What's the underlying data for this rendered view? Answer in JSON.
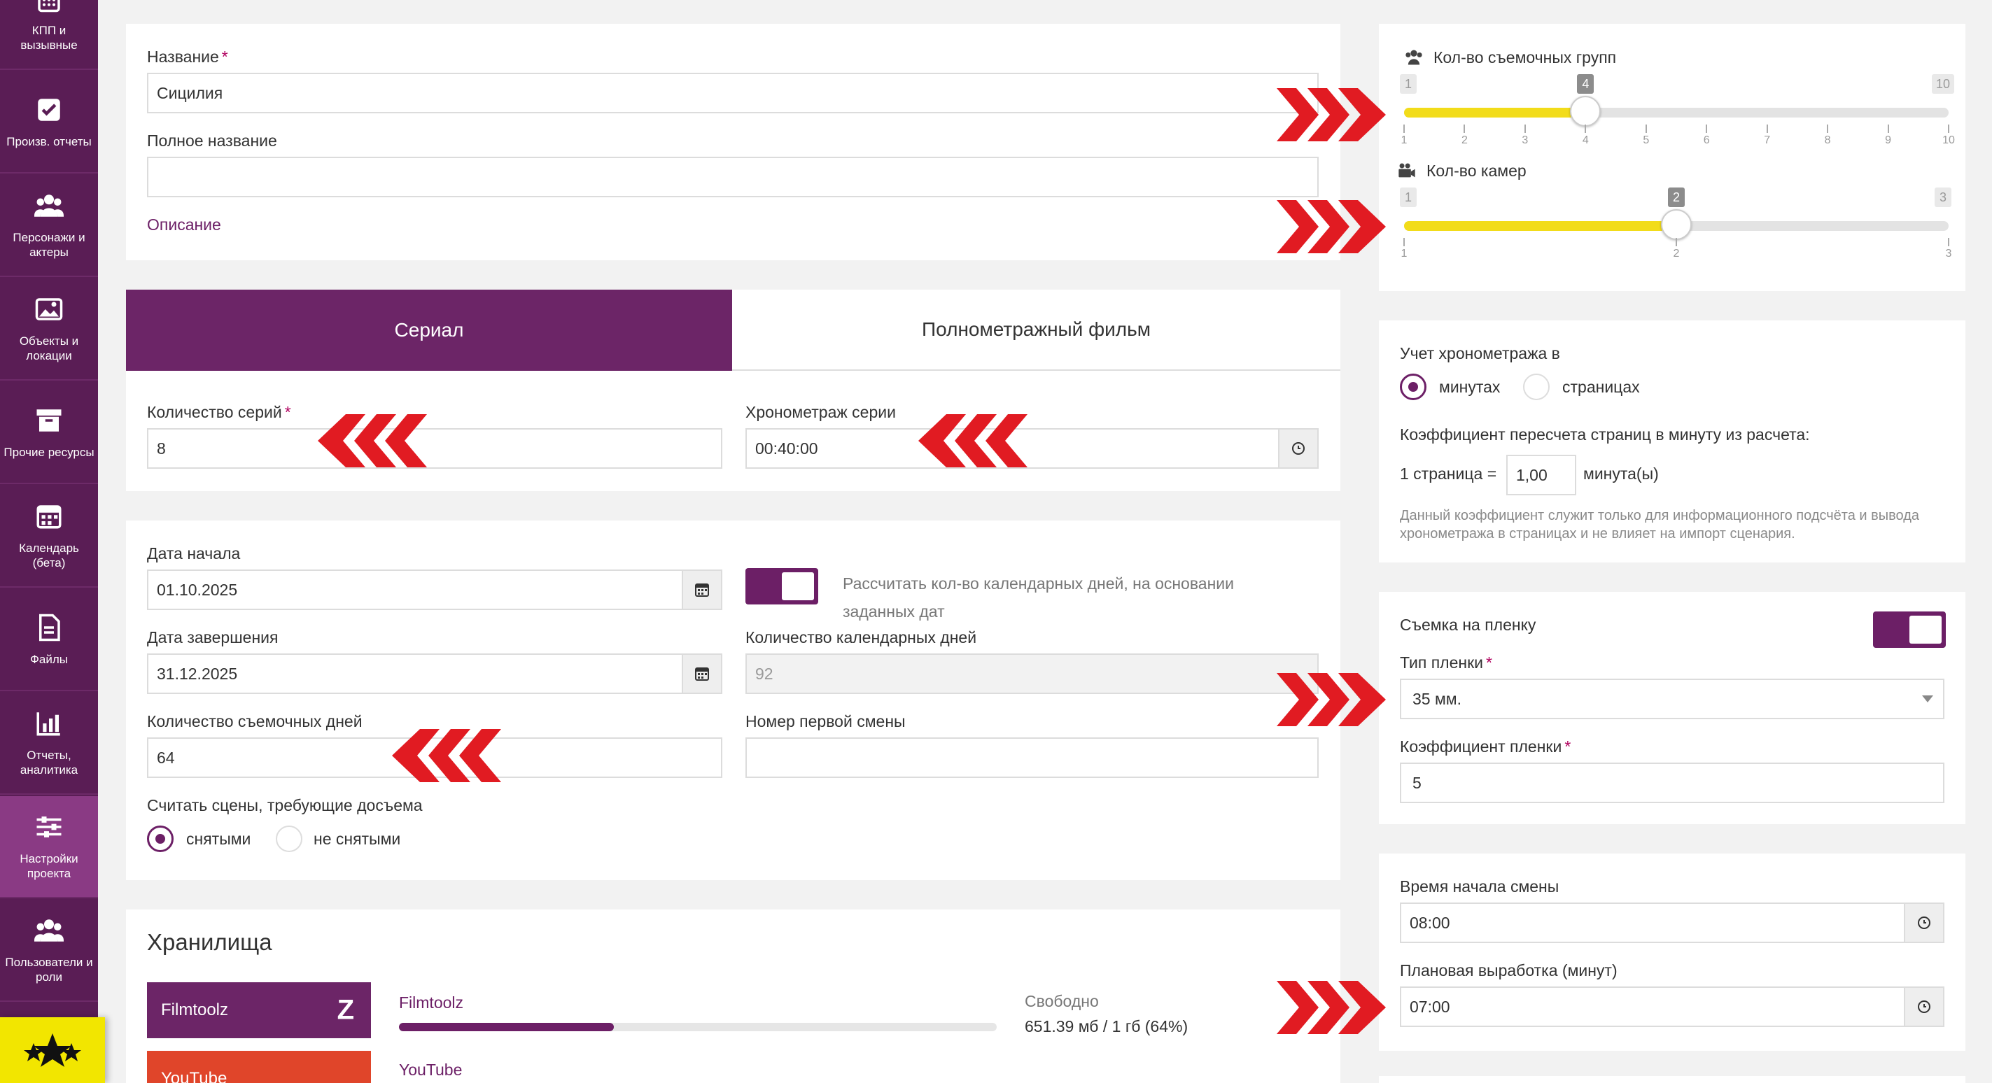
{
  "sidebar": {
    "items": [
      {
        "label": "КПП и вызывные",
        "icon": "calculator-icon"
      },
      {
        "label": "Произв. отчеты",
        "icon": "checkbox-icon"
      },
      {
        "label": "Персонажи и актеры",
        "icon": "users-icon"
      },
      {
        "label": "Объекты и локации",
        "icon": "image-icon"
      },
      {
        "label": "Прочие ресурсы",
        "icon": "archive-icon"
      },
      {
        "label": "Календарь (бета)",
        "icon": "calendar-icon"
      },
      {
        "label": "Файлы",
        "icon": "file-icon"
      },
      {
        "label": "Отчеты, аналитика",
        "icon": "bar-chart-icon"
      },
      {
        "label": "Настройки проекта",
        "icon": "sliders-icon",
        "active": true
      },
      {
        "label": "Пользователи и роли",
        "icon": "users-icon"
      }
    ]
  },
  "info": {
    "name_label": "Название",
    "name_value": "Сицилия",
    "fullname_label": "Полное название",
    "fullname_value": "",
    "description_link": "Описание"
  },
  "type_tabs": {
    "serial": "Сериал",
    "feature": "Полнометражный фильм",
    "episodes_label": "Количество серий",
    "episodes_value": "8",
    "duration_label": "Хронометраж серии",
    "duration_value": "00:40:00"
  },
  "dates": {
    "start_label": "Дата начала",
    "start_value": "01.10.2025",
    "end_label": "Дата завершения",
    "end_value": "31.12.2025",
    "shooting_days_label": "Количество съемочных дней",
    "shooting_days_value": "64",
    "calc_toggle_text": "Рассчитать кол-во календарных дней, на основании заданных дат",
    "calendar_days_label": "Количество календарных дней",
    "calendar_days_value": "92",
    "first_shift_label": "Номер первой смены",
    "first_shift_value": "",
    "reshoot_label": "Считать сцены, требующие досъема",
    "reshoot_opt1": "снятыми",
    "reshoot_opt2": "не снятыми"
  },
  "storage": {
    "title": "Хранилища",
    "filmtoolz_btn": "Filmtoolz",
    "filmtoolz_name": "Filmtoolz",
    "free_label": "Свободно",
    "free_value": "651.39 мб / 1 гб (64%)",
    "used_fraction": 0.36,
    "youtube_btn": "YouTube",
    "youtube_name": "YouTube"
  },
  "groups_slider": {
    "title": "Кол-во съемочных групп",
    "min": "1",
    "max": "10",
    "value": "4",
    "ticks": [
      "1",
      "2",
      "3",
      "4",
      "5",
      "6",
      "7",
      "8",
      "9",
      "10"
    ]
  },
  "cameras_slider": {
    "title": "Кол-во камер",
    "min": "1",
    "max": "3",
    "value": "2",
    "ticks": [
      "1",
      "2",
      "3"
    ]
  },
  "timing": {
    "title": "Учет хронометража в",
    "opt_minutes": "минутах",
    "opt_pages": "страницах",
    "coef_title": "Коэффициент пересчета страниц в минуту из расчета:",
    "page_prefix": "1 страница =",
    "coef_value": "1,00",
    "unit": "минута(ы)",
    "note": "Данный коэффициент служит только для информационного подсчёта и вывода хронометража в страницах и не влияет на импорт сценария."
  },
  "film": {
    "toggle_label": "Съемка на пленку",
    "type_label": "Тип пленки",
    "type_value": "35 мм.",
    "coef_label": "Коэффициент пленки",
    "coef_value": "5"
  },
  "shift": {
    "start_label": "Время начала смены",
    "start_value": "08:00",
    "plan_label": "Плановая выработка (минут)",
    "plan_value": "07:00"
  },
  "colors": {
    "sidebar": "#5a1d55",
    "accent": "#6c1f66",
    "slider_fill": "#f2dc1a",
    "arrow": "#e11b22",
    "logo_bg": "#f2e600"
  }
}
